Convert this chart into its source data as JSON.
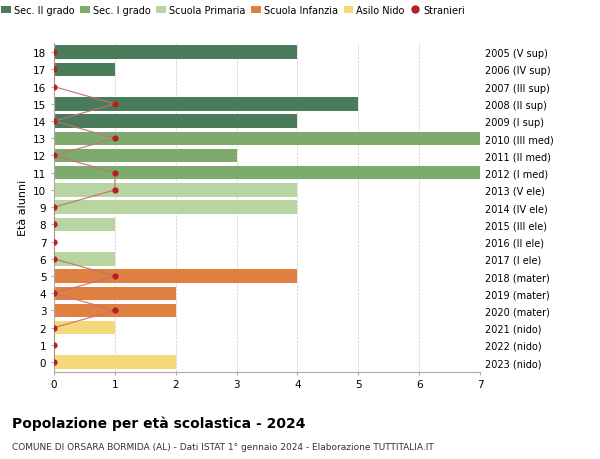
{
  "ages": [
    18,
    17,
    16,
    15,
    14,
    13,
    12,
    11,
    10,
    9,
    8,
    7,
    6,
    5,
    4,
    3,
    2,
    1,
    0
  ],
  "right_labels": [
    "2005 (V sup)",
    "2006 (IV sup)",
    "2007 (III sup)",
    "2008 (II sup)",
    "2009 (I sup)",
    "2010 (III med)",
    "2011 (II med)",
    "2012 (I med)",
    "2013 (V ele)",
    "2014 (IV ele)",
    "2015 (III ele)",
    "2016 (II ele)",
    "2017 (I ele)",
    "2018 (mater)",
    "2019 (mater)",
    "2020 (mater)",
    "2021 (nido)",
    "2022 (nido)",
    "2023 (nido)"
  ],
  "bar_values": [
    4,
    1,
    0,
    5,
    4,
    7,
    3,
    7,
    4,
    4,
    1,
    0,
    1,
    4,
    2,
    2,
    1,
    0,
    2
  ],
  "bar_colors": [
    "#4a7c59",
    "#4a7c59",
    "#4a7c59",
    "#4a7c59",
    "#4a7c59",
    "#7dab6e",
    "#7dab6e",
    "#7dab6e",
    "#b8d4a0",
    "#b8d4a0",
    "#b8d4a0",
    "#b8d4a0",
    "#b8d4a0",
    "#e08040",
    "#e08040",
    "#e08040",
    "#f5d87a",
    "#f5d87a",
    "#f5d87a"
  ],
  "stranieri_values": [
    0,
    0,
    0,
    1,
    0,
    1,
    0,
    1,
    1,
    0,
    0,
    0,
    0,
    1,
    0,
    1,
    0,
    0,
    0
  ],
  "colors": {
    "sec2": "#4a7c59",
    "sec1": "#7dab6e",
    "primaria": "#b8d4a0",
    "infanzia": "#e08040",
    "nido": "#f5d87a",
    "stranieri": "#b22222",
    "stranieri_line": "#c87070"
  },
  "title": "Popolazione per età scolastica - 2024",
  "subtitle": "COMUNE DI ORSARA BORMIDA (AL) - Dati ISTAT 1° gennaio 2024 - Elaborazione TUTTITALIA.IT",
  "ylabel_left": "Età alunni",
  "legend_labels": [
    "Sec. II grado",
    "Sec. I grado",
    "Scuola Primaria",
    "Scuola Infanzia",
    "Asilo Nido",
    "Stranieri"
  ],
  "xlim": [
    0,
    7
  ],
  "background": "#ffffff"
}
